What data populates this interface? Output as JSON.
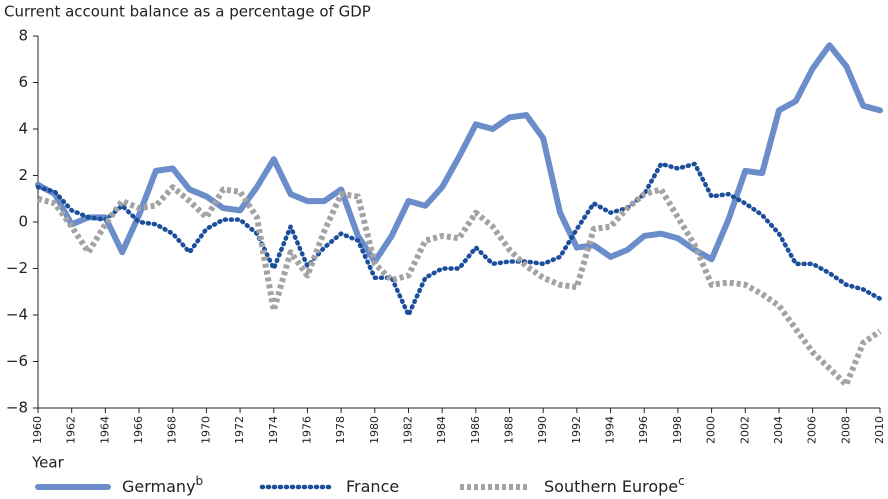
{
  "chart_data": {
    "type": "line",
    "title": "Current account balance as a percentage of GDP",
    "xlabel": "Year",
    "x": [
      1960,
      1961,
      1962,
      1963,
      1964,
      1965,
      1966,
      1967,
      1968,
      1969,
      1970,
      1971,
      1972,
      1973,
      1974,
      1975,
      1976,
      1977,
      1978,
      1979,
      1980,
      1981,
      1982,
      1983,
      1984,
      1985,
      1986,
      1987,
      1988,
      1989,
      1990,
      1991,
      1992,
      1993,
      1994,
      1995,
      1996,
      1997,
      1998,
      1999,
      2000,
      2001,
      2002,
      2003,
      2004,
      2005,
      2006,
      2007,
      2008,
      2009,
      2010
    ],
    "series": [
      {
        "name": "Germany",
        "note": "b",
        "color": "#6b8dc9",
        "style": "solid",
        "values": [
          1.6,
          1.2,
          -0.1,
          0.2,
          0.2,
          -1.3,
          0.3,
          2.2,
          2.3,
          1.4,
          1.1,
          0.6,
          0.5,
          1.5,
          2.7,
          1.2,
          0.9,
          0.9,
          1.4,
          -0.6,
          -1.7,
          -0.6,
          0.9,
          0.7,
          1.5,
          2.8,
          4.2,
          4.0,
          4.5,
          4.6,
          3.6,
          0.4,
          -1.1,
          -1.0,
          -1.5,
          -1.2,
          -0.6,
          -0.5,
          -0.7,
          -1.2,
          -1.6,
          0.1,
          2.2,
          2.1,
          4.8,
          5.2,
          6.6,
          7.6,
          6.7,
          5.0,
          4.8
        ]
      },
      {
        "name": "France",
        "color": "#1b4f9c",
        "style": "dotted",
        "values": [
          1.5,
          1.3,
          0.5,
          0.2,
          0.1,
          0.7,
          0.0,
          -0.1,
          -0.5,
          -1.3,
          -0.3,
          0.1,
          0.1,
          -0.5,
          -2.0,
          -0.2,
          -1.9,
          -1.1,
          -0.5,
          -0.8,
          -2.4,
          -2.4,
          -4.0,
          -2.4,
          -2.0,
          -2.0,
          -1.1,
          -1.8,
          -1.7,
          -1.7,
          -1.8,
          -1.5,
          -0.3,
          0.8,
          0.4,
          0.6,
          1.2,
          2.5,
          2.3,
          2.5,
          1.1,
          1.2,
          0.8,
          0.3,
          -0.5,
          -1.8,
          -1.8,
          -2.2,
          -2.7,
          -2.9,
          -3.3
        ]
      },
      {
        "name": "Southern Europe",
        "note": "c",
        "color": "#a3a3a3",
        "style": "dashed",
        "values": [
          1.0,
          0.8,
          -0.2,
          -1.3,
          -0.1,
          0.9,
          0.6,
          0.7,
          1.5,
          0.9,
          0.2,
          1.4,
          1.3,
          0.2,
          -3.8,
          -1.3,
          -2.3,
          -0.4,
          1.2,
          1.1,
          -1.8,
          -2.5,
          -2.3,
          -0.8,
          -0.6,
          -0.7,
          0.4,
          -0.2,
          -1.2,
          -1.9,
          -2.4,
          -2.7,
          -2.8,
          -0.3,
          -0.2,
          0.6,
          1.2,
          1.4,
          0.2,
          -1.0,
          -2.7,
          -2.6,
          -2.7,
          -3.1,
          -3.6,
          -4.6,
          -5.6,
          -6.3,
          -7.0,
          -5.2,
          -4.7
        ]
      }
    ],
    "xlim": [
      1960,
      2010
    ],
    "xticks": [
      1960,
      1962,
      1964,
      1966,
      1968,
      1970,
      1972,
      1974,
      1976,
      1978,
      1980,
      1982,
      1984,
      1986,
      1988,
      1990,
      1992,
      1994,
      1996,
      1998,
      2000,
      2002,
      2004,
      2006,
      2008,
      2010
    ],
    "ylim": [
      -8,
      8
    ],
    "yticks": [
      {
        "value": -8,
        "label": "−8"
      },
      {
        "value": -6,
        "label": "−6"
      },
      {
        "value": -4,
        "label": "−4"
      },
      {
        "value": -2,
        "label": "−2"
      },
      0,
      2,
      4,
      6,
      8
    ],
    "grid": false
  }
}
